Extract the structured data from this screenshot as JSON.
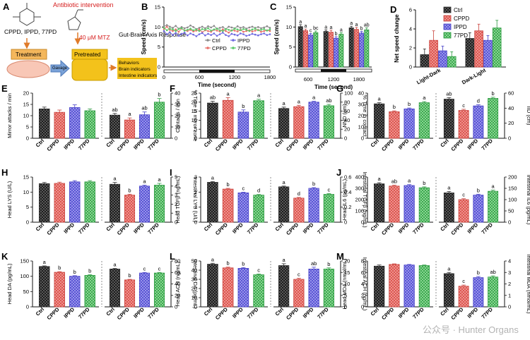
{
  "colors": {
    "ctrl": "#2b2b2b",
    "cppd": "#e8706a",
    "ippd": "#6f6ae0",
    "p77": "#5bc86a",
    "accent_red": "#d62020",
    "box_orange": "#f4b75c",
    "box_yellow": "#f3c21b",
    "box_blue": "#7aa2d8"
  },
  "schematic": {
    "panel_label": "A",
    "compound_label": "CPPD, IPPD, 77PD",
    "header_text": "Antibiotic intervention",
    "dose_label": "40 μM MTZ",
    "treatment_label": "Treatment",
    "gavage_label": "Gavage",
    "pretreated_label": "Pretreated",
    "gba_title": "Gut-Brain Axis Response",
    "response_items": [
      "Behaviors",
      "Brain indicators",
      "Intestine indicators"
    ]
  },
  "legend": {
    "items": [
      "Ctrl",
      "CPPD",
      "IPPD",
      "77PD"
    ],
    "scatter_items": [
      "Ctrl",
      "IPPD",
      "CPPD",
      "77PD"
    ]
  },
  "chart_data": [
    {
      "id": "B",
      "type": "line",
      "title": "",
      "xlabel": "Time (second)",
      "ylabel": "Speed (cm/s)",
      "xlim": [
        0,
        1800
      ],
      "ylim": [
        0,
        15
      ],
      "xticks": [
        0,
        600,
        1200,
        1800
      ],
      "yticks": [
        0,
        5,
        10,
        15
      ],
      "series": [
        {
          "name": "Ctrl",
          "values": [
            10.2,
            10.5,
            10.1,
            9.8,
            10.3,
            9.6,
            10.0,
            9.7,
            9.9,
            10.4,
            10.0,
            9.5,
            9.8,
            10.1,
            9.7,
            10.2,
            9.9,
            10.3,
            9.6,
            9.8,
            10.0,
            9.5,
            10.1,
            9.9,
            9.7,
            10.2,
            9.8,
            10.0,
            9.6,
            9.9,
            10.1,
            9.8,
            10.0,
            9.7,
            9.9,
            10.2,
            9.8
          ]
        },
        {
          "name": "CPPD",
          "values": [
            9.5,
            10.1,
            9.3,
            9.0,
            9.4,
            8.8,
            9.6,
            9.2,
            9.0,
            9.3,
            8.9,
            9.1,
            9.4,
            8.7,
            9.2,
            9.0,
            8.8,
            9.3,
            9.1,
            8.9,
            9.4,
            9.0,
            8.6,
            9.2,
            9.1,
            8.9,
            9.3,
            8.8,
            9.0,
            9.2,
            8.9,
            9.1,
            9.3,
            8.8,
            9.0,
            9.2,
            9.0
          ]
        },
        {
          "name": "IPPD",
          "values": [
            9.0,
            8.2,
            8.7,
            8.0,
            8.5,
            7.8,
            8.3,
            8.6,
            7.9,
            8.4,
            8.1,
            7.7,
            8.2,
            8.5,
            7.9,
            8.3,
            8.0,
            8.4,
            7.8,
            8.2,
            8.6,
            8.0,
            7.7,
            8.3,
            8.1,
            7.9,
            8.4,
            8.2,
            7.8,
            8.0,
            8.3,
            8.1,
            7.9,
            8.2,
            8.4,
            8.0,
            8.2
          ]
        },
        {
          "name": "77PD",
          "values": [
            9.8,
            9.2,
            9.6,
            9.4,
            9.0,
            9.5,
            9.7,
            9.1,
            9.3,
            9.6,
            9.2,
            9.4,
            9.0,
            9.5,
            9.3,
            9.7,
            9.1,
            9.4,
            9.6,
            9.2,
            9.0,
            9.5,
            9.3,
            9.1,
            9.6,
            9.4,
            9.2,
            9.5,
            9.3,
            9.0,
            9.4,
            9.6,
            9.2,
            9.3,
            9.5,
            9.1,
            9.4
          ]
        }
      ]
    },
    {
      "id": "C",
      "type": "bar",
      "xlabel": "Time (second)",
      "ylabel": "Speed (cm/s)",
      "ylim": [
        0,
        15
      ],
      "yticks": [
        0,
        5,
        10,
        15
      ],
      "categories": [
        "600",
        "1200",
        "1800"
      ],
      "series": [
        {
          "name": "Ctrl",
          "values": [
            10.1,
            8.9,
            9.8
          ]
        },
        {
          "name": "CPPD",
          "values": [
            9.1,
            8.7,
            9.4
          ]
        },
        {
          "name": "IPPD",
          "values": [
            8.0,
            7.2,
            8.5
          ]
        },
        {
          "name": "77PD",
          "values": [
            8.6,
            8.2,
            9.3
          ]
        }
      ],
      "errors": [
        [
          0.5,
          0.4,
          0.4
        ],
        [
          0.4,
          0.5,
          0.5
        ],
        [
          0.4,
          0.4,
          0.4
        ],
        [
          0.4,
          0.4,
          0.5
        ]
      ],
      "letters": [
        [
          "a",
          "a",
          "a"
        ],
        [
          "a",
          "a",
          "a"
        ],
        [
          "c",
          "b",
          "b"
        ],
        [
          "bc",
          "a",
          "ab"
        ]
      ]
    },
    {
      "id": "D",
      "type": "bar",
      "ylabel": "Net speed change",
      "ylim": [
        0,
        6
      ],
      "yticks": [
        0,
        2,
        4,
        6
      ],
      "categories": [
        "Light-Dark",
        "Dark-Light"
      ],
      "series": [
        {
          "name": "Ctrl",
          "values": [
            1.3,
            3.0
          ]
        },
        {
          "name": "CPPD",
          "values": [
            2.8,
            3.8
          ]
        },
        {
          "name": "IPPD",
          "values": [
            1.7,
            2.8
          ]
        },
        {
          "name": "77PD",
          "values": [
            1.1,
            4.1
          ]
        }
      ],
      "errors": [
        [
          0.6,
          0.6
        ],
        [
          1.0,
          0.7
        ],
        [
          0.5,
          0.5
        ],
        [
          0.5,
          0.8
        ]
      ]
    },
    {
      "id": "E",
      "type": "bar",
      "group_labels": [
        "Ctrl",
        "CPPD",
        "IPPD",
        "77PD"
      ],
      "left": {
        "ylabel": "Mirror attacks / min",
        "ylim": [
          0,
          20
        ],
        "yticks": [
          0,
          5,
          10,
          15,
          20
        ],
        "values": [
          13.0,
          11.5,
          13.6,
          12.2
        ],
        "errors": [
          0.8,
          1.0,
          1.2,
          0.8
        ],
        "letters": []
      },
      "right": {
        "ylabel": "% Time in mirror zone",
        "ylim": [
          0,
          40
        ],
        "yticks": [
          0,
          10,
          20,
          30,
          40
        ],
        "values": [
          20.5,
          16.2,
          20.8,
          32.0
        ],
        "errors": [
          1.5,
          1.8,
          2.5,
          3.2
        ],
        "letters": [
          "ab",
          "a",
          "ab",
          "b"
        ]
      }
    },
    {
      "id": "F",
      "type": "bar",
      "group_labels": [
        "Ctrl",
        "CPPD",
        "IPPD",
        "77PD"
      ],
      "left": {
        "ylabel": "Contacts / min",
        "ylim": [
          0,
          25
        ],
        "yticks": [
          0,
          5,
          10,
          15,
          20,
          25
        ],
        "values": [
          19.5,
          21.0,
          14.5,
          20.8
        ],
        "errors": [
          1.0,
          1.5,
          1.2,
          0.8
        ],
        "letters": [
          "ab",
          "a",
          "b",
          "a"
        ]
      },
      "right": {
        "ylabel": "% Time in contact",
        "ylim": [
          0,
          100
        ],
        "yticks": [
          0,
          20,
          40,
          60,
          80,
          100
        ],
        "values": [
          66,
          70,
          80,
          72
        ],
        "errors": [
          3,
          3,
          2,
          3
        ],
        "letters": [
          "a",
          "a",
          "a",
          "ab"
        ]
      }
    },
    {
      "id": "G",
      "type": "bar",
      "group_labels": [
        "Ctrl",
        "CPPD",
        "IPPD",
        "77PD"
      ],
      "left": {
        "ylabel": "NND (cm)",
        "ylim": [
          0,
          40
        ],
        "yticks": [
          0,
          10,
          20,
          30,
          40
        ],
        "values": [
          30.5,
          23.5,
          26.0,
          31.5
        ],
        "errors": [
          1.0,
          0.8,
          0.8,
          1.0
        ],
        "letters": [
          "a",
          "b",
          "b",
          "a"
        ]
      },
      "right": {
        "ylabel": "IID (cm)",
        "ylim": [
          0,
          60
        ],
        "yticks": [
          0,
          20,
          40,
          60
        ],
        "values": [
          52,
          37,
          43,
          53
        ],
        "errors": [
          2,
          1.5,
          1.5,
          1.5
        ],
        "letters": [
          "ab",
          "c",
          "d",
          "b"
        ]
      }
    },
    {
      "id": "H",
      "type": "bar",
      "group_labels": [
        "Ctrl",
        "CPPD",
        "IPPD",
        "77PD"
      ],
      "left": {
        "ylabel": "Head LYS (U/L)",
        "ylim": [
          0,
          15
        ],
        "yticks": [
          0,
          5,
          10,
          15
        ],
        "values": [
          12.8,
          12.9,
          13.4,
          13.4
        ],
        "errors": [
          0.4,
          0.4,
          0.4,
          0.4
        ],
        "letters": []
      },
      "right": {
        "ylabel": "Intestinal LYS (U/L)",
        "ylim": [
          0,
          5
        ],
        "yticks": [
          0,
          1,
          2,
          3,
          4,
          5
        ],
        "values": [
          4.2,
          3.0,
          4.0,
          4.1
        ],
        "errors": [
          0.2,
          0.1,
          0.1,
          0.2
        ],
        "letters": [
          "a",
          "b",
          "a",
          "a"
        ]
      }
    },
    {
      "id": "I",
      "type": "bar",
      "group_labels": [
        "Ctrl",
        "CPPD",
        "IPPD",
        "77PD"
      ],
      "left": {
        "ylabel": "Head TGFβ (ng/mL)",
        "ylim": [
          0,
          3
        ],
        "yticks": [
          0,
          1,
          2,
          3
        ],
        "values": [
          2.65,
          2.2,
          1.95,
          1.8
        ],
        "errors": [
          0.05,
          0.05,
          0.04,
          0.04
        ],
        "letters": [
          "a",
          "b",
          "c",
          "d"
        ]
      },
      "right": {
        "ylabel": "Intestinal TGFβ (ng/mL)",
        "ylim": [
          0,
          0.6
        ],
        "yticks": [
          0,
          0.2,
          0.4,
          0.6
        ],
        "values": [
          0.47,
          0.32,
          0.45,
          0.37
        ],
        "errors": [
          0.01,
          0.01,
          0.01,
          0.01
        ],
        "letters": [
          "a",
          "d",
          "b",
          "c"
        ]
      }
    },
    {
      "id": "J",
      "type": "bar",
      "group_labels": [
        "Ctrl",
        "CPPD",
        "IPPD",
        "77PD"
      ],
      "left": {
        "ylabel": "Head IL6 (pg/mL)",
        "ylim": [
          0,
          400
        ],
        "yticks": [
          0,
          100,
          200,
          300,
          400
        ],
        "values": [
          340,
          320,
          325,
          305
        ],
        "errors": [
          10,
          8,
          8,
          8
        ],
        "letters": [
          "a",
          "ab",
          "a",
          "b"
        ]
      },
      "right": {
        "ylabel": "Intestinal IL6 (pg/mL)",
        "ylim": [
          0,
          200
        ],
        "yticks": [
          0,
          50,
          100,
          150,
          200
        ],
        "values": [
          130,
          100,
          120,
          137
        ],
        "errors": [
          6,
          4,
          4,
          5
        ],
        "letters": [
          "a",
          "c",
          "b",
          "a"
        ]
      }
    },
    {
      "id": "K",
      "type": "bar",
      "group_labels": [
        "Ctrl",
        "CPPD",
        "IPPD",
        "77PD"
      ],
      "left": {
        "ylabel": "Head DA (pg/mL)",
        "ylim": [
          0,
          150
        ],
        "yticks": [
          0,
          50,
          100,
          150
        ],
        "values": [
          132,
          113,
          100,
          103
        ],
        "errors": [
          2,
          2,
          2,
          2
        ],
        "letters": [
          "a",
          "b",
          "b",
          "b"
        ]
      },
      "right": {
        "ylabel": "Intestinal DA (pg/mL)",
        "ylim": [
          0,
          80
        ],
        "yticks": [
          0,
          20,
          40,
          60,
          80
        ],
        "values": [
          66,
          47,
          59,
          59
        ],
        "errors": [
          1,
          1,
          1,
          1
        ],
        "letters": [
          "a",
          "b",
          "c",
          "c"
        ]
      }
    },
    {
      "id": "L",
      "type": "bar",
      "group_labels": [
        "Ctrl",
        "CPPD",
        "IPPD",
        "77PD"
      ],
      "left": {
        "ylabel": "Head ACH (ng/mL)",
        "ylim": [
          0,
          50
        ],
        "yticks": [
          0,
          10,
          20,
          30,
          40,
          50
        ],
        "values": [
          46.5,
          42.5,
          42.0,
          35.0
        ],
        "errors": [
          1.0,
          0.8,
          0.8,
          0.8
        ],
        "letters": [
          "a",
          "b",
          "b",
          "c"
        ]
      },
      "right": {
        "ylabel": "Intestinal ACH (ng/mL)",
        "ylim": [
          0,
          20
        ],
        "yticks": [
          0,
          5,
          10,
          15,
          20
        ],
        "values": [
          18.0,
          12.0,
          16.5,
          16.5
        ],
        "errors": [
          0.8,
          0.5,
          0.8,
          0.5
        ],
        "letters": [
          "a",
          "c",
          "ab",
          "b"
        ]
      }
    },
    {
      "id": "M",
      "type": "bar",
      "group_labels": [
        "Ctrl",
        "CPPD",
        "IPPD",
        "77PD"
      ],
      "left": {
        "ylabel": "Head MDA (nmol/mL)",
        "ylim": [
          0,
          8
        ],
        "yticks": [
          0,
          2,
          4,
          6,
          8
        ],
        "values": [
          7.1,
          7.4,
          7.3,
          7.2
        ],
        "errors": [
          0.2,
          0.1,
          0.1,
          0.1
        ],
        "letters": []
      },
      "right": {
        "ylabel": "Intestinal MDA (nmol/mL)",
        "ylim": [
          0,
          4
        ],
        "yticks": [
          0,
          1,
          2,
          3,
          4
        ],
        "values": [
          2.9,
          1.8,
          2.55,
          2.6
        ],
        "errors": [
          0.1,
          0.1,
          0.1,
          0.1
        ],
        "letters": [
          "a",
          "c",
          "b",
          "ab"
        ]
      }
    }
  ],
  "watermark": "公众号 · Hunter Organs"
}
